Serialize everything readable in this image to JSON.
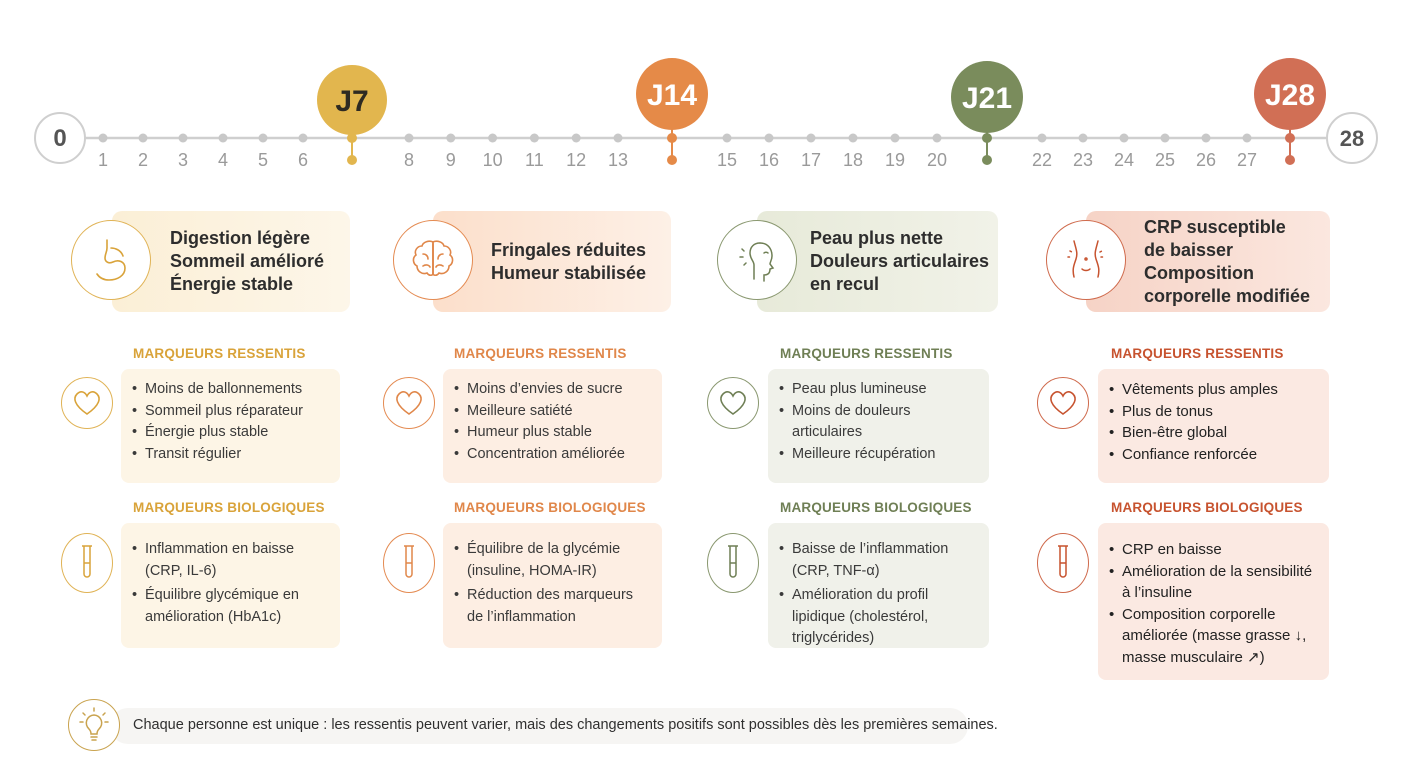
{
  "timeline": {
    "start": "0",
    "end": "28",
    "ticks": [
      "1",
      "2",
      "3",
      "4",
      "5",
      "6",
      "8",
      "9",
      "10",
      "11",
      "12",
      "13",
      "15",
      "16",
      "17",
      "18",
      "19",
      "20",
      "22",
      "23",
      "24",
      "25",
      "26",
      "27"
    ],
    "milestones": [
      {
        "label": "J7",
        "color": "#e2b64e"
      },
      {
        "label": "J14",
        "color": "#e58a48"
      },
      {
        "label": "J21",
        "color": "#7a8c5c"
      },
      {
        "label": "J28",
        "color": "#d16f55"
      }
    ]
  },
  "columns": [
    {
      "accent": "#d9a33a",
      "header": [
        "Digestion légère",
        "Sommeil amélioré",
        "Énergie stable"
      ],
      "icon": "stomach-icon",
      "felt_title": "MARQUEURS RESSENTIS",
      "felt": [
        "Moins de ballonnements",
        "Sommeil plus réparateur",
        "Énergie plus stable",
        "Transit régulier"
      ],
      "bio_title": "MARQUEURS BIOLOGIQUES",
      "bio": [
        "Inflammation en baisse (CRP, IL-6)",
        "Équilibre glycémique en amélioration (HbA1c)"
      ]
    },
    {
      "accent": "#e0874a",
      "header": [
        "Fringales réduites",
        "Humeur stabilisée"
      ],
      "icon": "brain-icon",
      "felt_title": "MARQUEURS RESSENTIS",
      "felt": [
        "Moins d’envies de sucre",
        "Meilleure satiété",
        "Humeur plus stable",
        "Concentration améliorée"
      ],
      "bio_title": "MARQUEURS BIOLOGIQUES",
      "bio": [
        "Équilibre de la glycémie (insuline, HOMA-IR)",
        "Réduction des marqueurs de l’inflammation"
      ]
    },
    {
      "accent": "#6f7f55",
      "header": [
        "Peau plus nette",
        "Douleurs articulaires",
        "en recul"
      ],
      "icon": "face-icon",
      "felt_title": "MARQUEURS RESSENTIS",
      "felt": [
        "Peau plus lumineuse",
        "Moins de douleurs articulaires",
        "Meilleure récupération"
      ],
      "bio_title": "MARQUEURS BIOLOGIQUES",
      "bio": [
        "Baisse de l’inflammation (CRP, TNF-α)",
        "Amélioration du profil lipidique (cholestérol, triglycérides)"
      ]
    },
    {
      "accent": "#c7532f",
      "header": [
        "CRP susceptible",
        "de baisser",
        "Composition",
        "corporelle modifiée"
      ],
      "icon": "body-icon",
      "felt_title": "MARQUEURS RESSENTIS",
      "felt": [
        "Vêtements plus amples",
        "Plus de tonus",
        "Bien-être global",
        "Confiance renforcée"
      ],
      "bio_title": "MARQUEURS BIOLOGIQUES",
      "bio": [
        "CRP en baisse",
        "Amélioration de la sensibilité à l’insuline",
        "Composition corporelle améliorée (masse grasse ↓, masse musculaire ↗)"
      ]
    }
  ],
  "footer": {
    "text": "Chaque personne est unique : les ressentis peuvent varier, mais des changements positifs sont possibles dès les premières semaines.",
    "icon": "lightbulb-icon"
  }
}
